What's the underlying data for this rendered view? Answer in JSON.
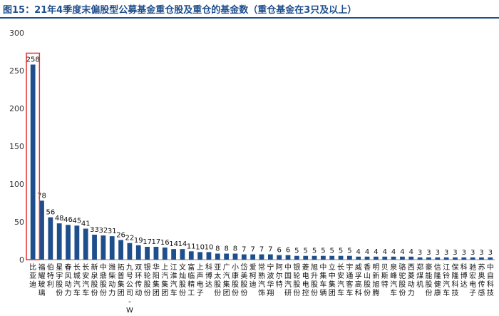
{
  "title": "图15：21年4季度末偏股型公募基金重仓股及重仓的基金数（重仓基金在3只及以上）",
  "colors": {
    "bar": "#1f4e8c",
    "highlight": "#e03030",
    "axis": "#888888",
    "title": "#1f4e8c"
  },
  "chart_data": {
    "type": "bar",
    "title": "",
    "xlabel": "",
    "ylabel": "",
    "ylim": [
      0,
      300
    ],
    "yticks": [
      0,
      50,
      100,
      150,
      200,
      250,
      300
    ],
    "grid": false,
    "legend": "none",
    "highlight_index": 0,
    "categories": [
      "比亚迪",
      "福耀玻璃",
      "伯特利",
      "星宇股份",
      "春风动力",
      "长城汽车",
      "长安汽车",
      "新泉股份",
      "中鼎股份",
      "潍柴动力",
      "拓普集团",
      "九号公司-WD",
      "双环传动",
      "银轮股份",
      "华阳集团",
      "上汽集团",
      "江淮汽车",
      "文灿股份",
      "富临精工",
      "上声电子",
      "科博达",
      "亚太股份",
      "广汽集团",
      "小康股份",
      "岱美股份",
      "爱柯迪",
      "常熟汽饰",
      "宁波华翔",
      "阿尔特",
      "中国汽研",
      "银轮股份",
      "菱电电控",
      "旭升股份",
      "中集车辆",
      "立中集团",
      "长安汽车",
      "宇通客车",
      "威孚高科",
      "香山股份",
      "明新旭腾",
      "贝斯特",
      "泉峰汽车",
      "骆驼股份",
      "西菱动力",
      "郑煤机",
      "豪能股份",
      "信隆健康",
      "江铃汽车",
      "保隆科技",
      "科博达",
      "驰宏电子",
      "苏奥传感",
      "中自科技"
    ],
    "values": [
      258,
      78,
      56,
      48,
      46,
      45,
      41,
      33,
      32,
      31,
      26,
      22,
      19,
      17,
      17,
      16,
      14,
      14,
      11,
      10,
      10,
      8,
      8,
      8,
      7,
      7,
      7,
      7,
      6,
      6,
      5,
      5,
      5,
      5,
      5,
      5,
      5,
      4,
      4,
      4,
      4,
      4,
      4,
      4,
      3,
      3,
      3,
      3,
      3,
      3,
      3,
      3,
      3
    ],
    "value_labels": [
      "258",
      "78",
      "56",
      "48",
      "46",
      "45",
      "41",
      "33",
      "32",
      "31",
      "26",
      "22",
      "19",
      "17",
      "17",
      "16",
      "14",
      "14",
      "11",
      "10",
      "10",
      "8",
      "8",
      "8",
      "7",
      "7",
      "7",
      "7",
      "6",
      "6",
      "5",
      "5",
      "5",
      "5",
      "5",
      "5",
      "5",
      "4",
      "4",
      "4",
      "4",
      "4",
      "4",
      "4",
      "3",
      "3",
      "3",
      "3",
      "3",
      "3",
      "3",
      "3",
      "3"
    ]
  }
}
